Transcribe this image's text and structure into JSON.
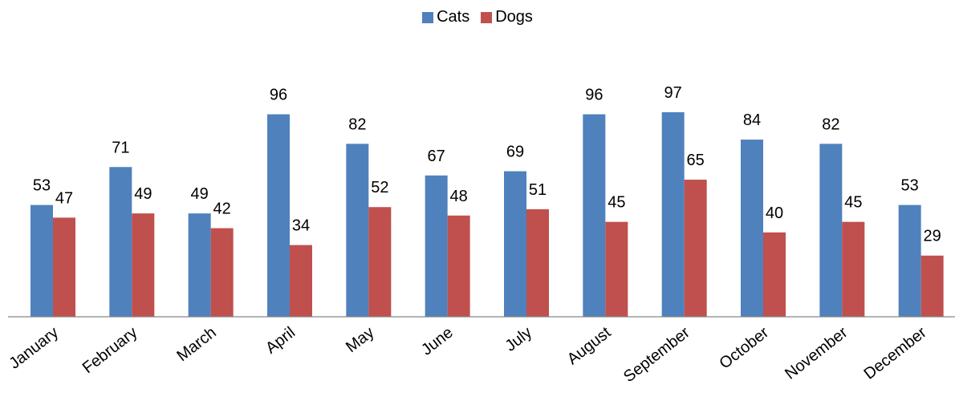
{
  "chart_data": {
    "type": "bar",
    "categories": [
      "January",
      "February",
      "March",
      "April",
      "May",
      "June",
      "July",
      "August",
      "September",
      "October",
      "November",
      "December"
    ],
    "series": [
      {
        "name": "Cats",
        "color": "#4F81BD",
        "values": [
          53,
          71,
          49,
          96,
          82,
          67,
          69,
          96,
          97,
          84,
          82,
          53
        ]
      },
      {
        "name": "Dogs",
        "color": "#C0504D",
        "values": [
          47,
          49,
          42,
          34,
          52,
          48,
          51,
          45,
          65,
          40,
          45,
          29
        ]
      }
    ],
    "title": "",
    "xlabel": "",
    "ylabel": "",
    "ylim": [
      0,
      100
    ],
    "grid": false,
    "legend": "top"
  }
}
